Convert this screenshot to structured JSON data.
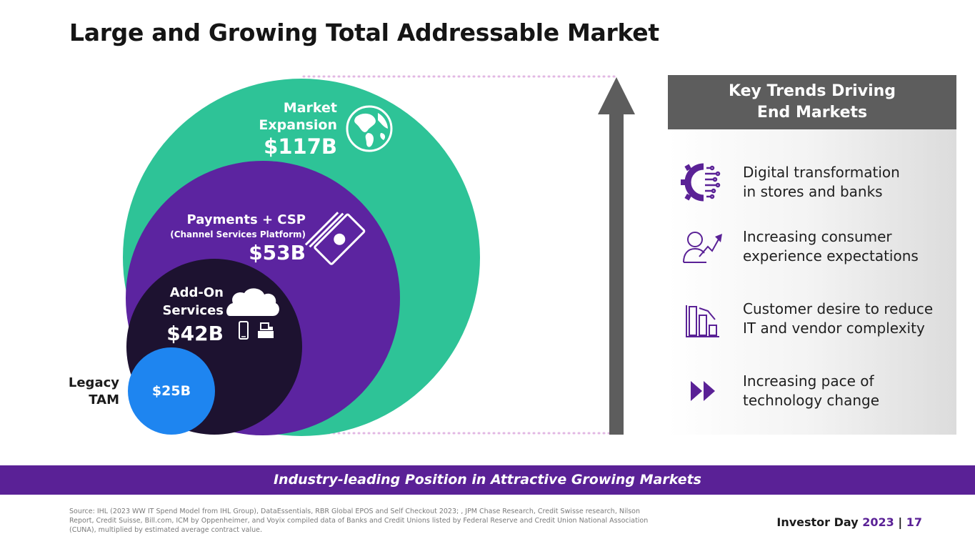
{
  "title": "Large and Growing Total Addressable Market",
  "bubbles": {
    "expansion": {
      "title_line1": "Market",
      "title_line2": "Expansion",
      "value": "$117B",
      "color": "#2ec397"
    },
    "payments": {
      "title": "Payments + CSP",
      "subtitle": "(Channel Services Platform)",
      "value": "$53B",
      "color": "#5c24a0"
    },
    "addon": {
      "title_line1": "Add-On",
      "title_line2": "Services",
      "value": "$42B",
      "color": "#1d1230"
    },
    "legacy": {
      "label_line1": "Legacy",
      "label_line2": "TAM",
      "value": "$25B",
      "color": "#1e85f0"
    }
  },
  "trends_panel": {
    "heading_line1": "Key Trends Driving",
    "heading_line2": "End Markets",
    "items": [
      {
        "icon": "digital-gear-icon",
        "line1": "Digital transformation",
        "line2": "in stores and banks"
      },
      {
        "icon": "consumer-growth-icon",
        "line1": "Increasing consumer",
        "line2": "experience expectations"
      },
      {
        "icon": "declining-bars-icon",
        "line1": "Customer desire to reduce",
        "line2": "IT and vendor complexity"
      },
      {
        "icon": "fast-forward-icon",
        "line1": "Increasing pace of",
        "line2": "technology change"
      }
    ],
    "accent_color": "#5a2196"
  },
  "banner": "Industry-leading Position in Attractive Growing Markets",
  "source": "Source: IHL (2023 WW IT Spend Model from IHL Group), DataEssentials, RBR Global EPOS and Self Checkout 2023; , JPM Chase Research, Credit Swisse research, Nilson Report, Credit Suisse, Bill.com, ICM by Oppenheimer, and Voyix compiled data of Banks and Credit Unions listed by Federal Reserve and Credit Union National Association (CUNA), multiplied by estimated average contract value.",
  "footer": {
    "label": "Investor Day",
    "year": "2023",
    "separator": "|",
    "page": "17"
  }
}
